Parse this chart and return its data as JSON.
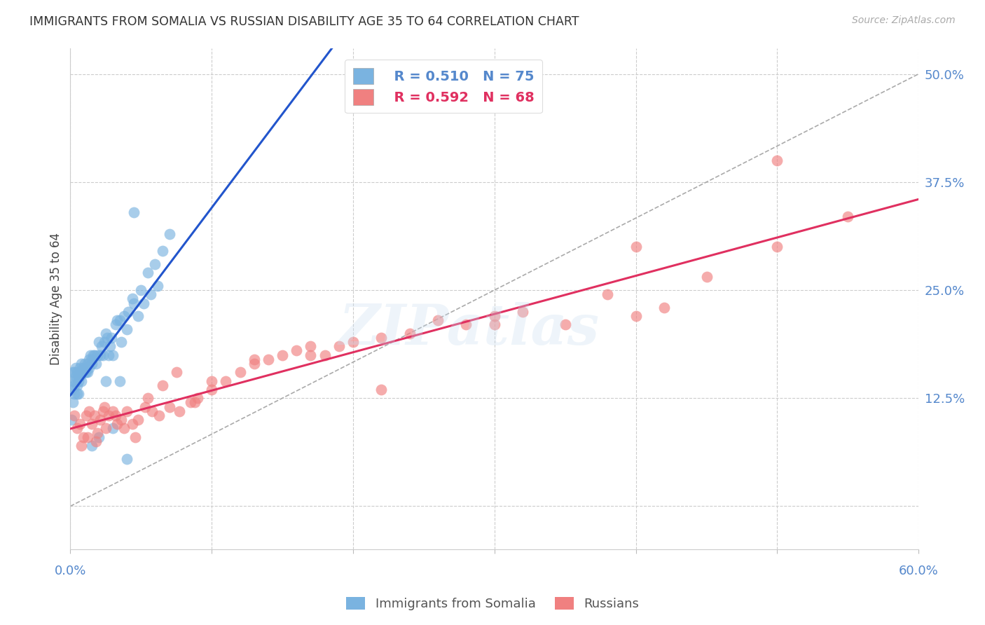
{
  "title": "IMMIGRANTS FROM SOMALIA VS RUSSIAN DISABILITY AGE 35 TO 64 CORRELATION CHART",
  "source": "Source: ZipAtlas.com",
  "ylabel": "Disability Age 35 to 64",
  "y_ticks": [
    0.0,
    0.125,
    0.25,
    0.375,
    0.5
  ],
  "y_tick_labels": [
    "",
    "12.5%",
    "25.0%",
    "37.5%",
    "50.0%"
  ],
  "x_min": 0.0,
  "x_max": 0.6,
  "y_min": -0.05,
  "y_max": 0.53,
  "somalia_R": 0.51,
  "somalia_N": 75,
  "russian_R": 0.592,
  "russian_N": 68,
  "somalia_color": "#7ab3e0",
  "russian_color": "#f08080",
  "somalia_line_color": "#2255cc",
  "russian_line_color": "#e03060",
  "dashed_line_color": "#aaaaaa",
  "axis_label_color": "#5588cc",
  "legend_color_somalia": "#5588cc",
  "legend_color_russian": "#e03060",
  "watermark": "ZIPatlas",
  "background_color": "#ffffff",
  "grid_color": "#cccccc",
  "somalia_x": [
    0.001,
    0.001,
    0.002,
    0.002,
    0.002,
    0.003,
    0.003,
    0.003,
    0.004,
    0.004,
    0.004,
    0.005,
    0.005,
    0.005,
    0.006,
    0.006,
    0.006,
    0.007,
    0.007,
    0.007,
    0.008,
    0.008,
    0.009,
    0.009,
    0.01,
    0.01,
    0.011,
    0.011,
    0.012,
    0.012,
    0.013,
    0.013,
    0.014,
    0.015,
    0.015,
    0.016,
    0.017,
    0.018,
    0.019,
    0.02,
    0.021,
    0.022,
    0.023,
    0.024,
    0.025,
    0.026,
    0.027,
    0.028,
    0.029,
    0.03,
    0.032,
    0.033,
    0.035,
    0.036,
    0.038,
    0.04,
    0.041,
    0.044,
    0.045,
    0.048,
    0.05,
    0.052,
    0.055,
    0.057,
    0.06,
    0.062,
    0.065,
    0.07,
    0.015,
    0.02,
    0.025,
    0.03,
    0.035,
    0.04,
    0.045
  ],
  "somalia_y": [
    0.135,
    0.1,
    0.155,
    0.145,
    0.12,
    0.14,
    0.155,
    0.13,
    0.15,
    0.16,
    0.145,
    0.155,
    0.14,
    0.13,
    0.145,
    0.15,
    0.13,
    0.155,
    0.16,
    0.15,
    0.165,
    0.145,
    0.16,
    0.155,
    0.165,
    0.155,
    0.16,
    0.155,
    0.165,
    0.155,
    0.17,
    0.16,
    0.175,
    0.17,
    0.165,
    0.175,
    0.175,
    0.165,
    0.175,
    0.19,
    0.175,
    0.185,
    0.175,
    0.19,
    0.2,
    0.195,
    0.175,
    0.185,
    0.195,
    0.175,
    0.21,
    0.215,
    0.215,
    0.19,
    0.22,
    0.205,
    0.225,
    0.24,
    0.235,
    0.22,
    0.25,
    0.235,
    0.27,
    0.245,
    0.28,
    0.255,
    0.295,
    0.315,
    0.07,
    0.08,
    0.145,
    0.09,
    0.145,
    0.055,
    0.34
  ],
  "russian_x": [
    0.003,
    0.005,
    0.007,
    0.009,
    0.011,
    0.013,
    0.015,
    0.017,
    0.019,
    0.021,
    0.023,
    0.025,
    0.027,
    0.03,
    0.033,
    0.036,
    0.04,
    0.044,
    0.048,
    0.053,
    0.058,
    0.063,
    0.07,
    0.077,
    0.085,
    0.09,
    0.1,
    0.11,
    0.12,
    0.13,
    0.14,
    0.15,
    0.16,
    0.17,
    0.18,
    0.19,
    0.2,
    0.22,
    0.24,
    0.26,
    0.28,
    0.3,
    0.32,
    0.35,
    0.38,
    0.4,
    0.42,
    0.45,
    0.5,
    0.55,
    0.008,
    0.012,
    0.018,
    0.024,
    0.032,
    0.038,
    0.046,
    0.055,
    0.065,
    0.075,
    0.088,
    0.1,
    0.13,
    0.17,
    0.22,
    0.3,
    0.4,
    0.5
  ],
  "russian_y": [
    0.105,
    0.09,
    0.095,
    0.08,
    0.105,
    0.11,
    0.095,
    0.105,
    0.085,
    0.1,
    0.11,
    0.09,
    0.105,
    0.11,
    0.095,
    0.1,
    0.11,
    0.095,
    0.1,
    0.115,
    0.11,
    0.105,
    0.115,
    0.11,
    0.12,
    0.125,
    0.135,
    0.145,
    0.155,
    0.165,
    0.17,
    0.175,
    0.18,
    0.185,
    0.175,
    0.185,
    0.19,
    0.195,
    0.2,
    0.215,
    0.21,
    0.22,
    0.225,
    0.21,
    0.245,
    0.22,
    0.23,
    0.265,
    0.3,
    0.335,
    0.07,
    0.08,
    0.075,
    0.115,
    0.105,
    0.09,
    0.08,
    0.125,
    0.14,
    0.155,
    0.12,
    0.145,
    0.17,
    0.175,
    0.135,
    0.21,
    0.3,
    0.4
  ]
}
